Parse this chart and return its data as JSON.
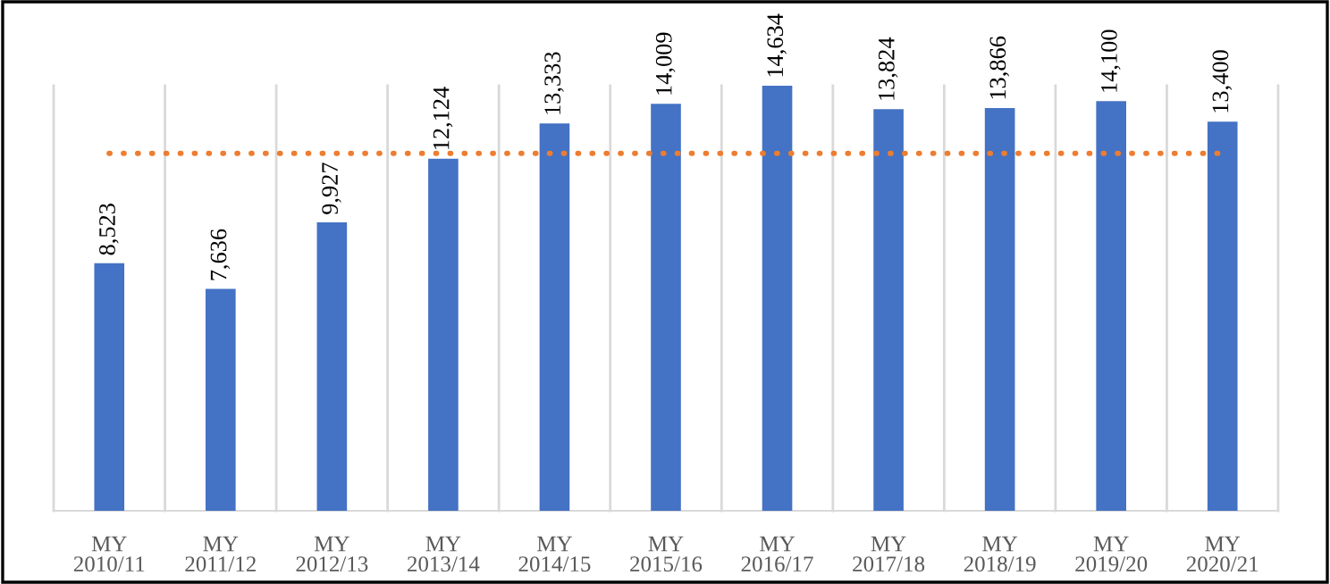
{
  "chart_data": {
    "type": "bar",
    "categories": [
      "MY\n2010/11",
      "MY\n2011/12",
      "MY\n2012/13",
      "MY\n2013/14",
      "MY\n2014/15",
      "MY\n2015/16",
      "MY\n2016/17",
      "MY\n2017/18",
      "MY\n2018/19",
      "MY\n2019/20",
      "MY\n2020/21"
    ],
    "values": [
      8523,
      7636,
      9927,
      12124,
      13333,
      14009,
      14634,
      13824,
      13866,
      14100,
      13400
    ],
    "color": "#4472c4",
    "value_labels": [
      "8,523",
      "7,636",
      "9,927",
      "12,124",
      "13,333",
      "14,009",
      "14,634",
      "13,824",
      "13,866",
      "14,100",
      "13,400"
    ],
    "ref_lines": [
      {
        "axis": "y",
        "value": 12307,
        "color": "#ed7d31",
        "line_style": "dotted"
      }
    ],
    "grid": "x"
  }
}
